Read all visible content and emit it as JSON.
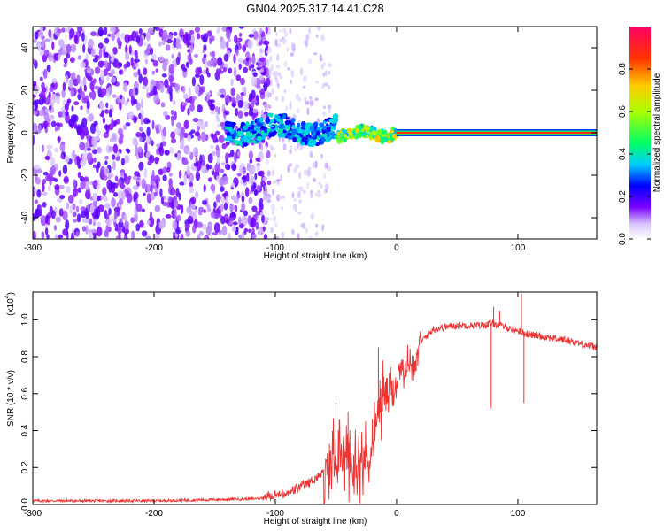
{
  "title": "GN04.2025.317.14.41.C28",
  "chart_data": [
    {
      "type": "heatmap",
      "xlabel": "Height of straight line (km)",
      "ylabel": "Frequency (Hz)",
      "xlim": [
        -300,
        165
      ],
      "ylim": [
        -50,
        50
      ],
      "x_ticks": [
        -300,
        -200,
        -100,
        0,
        100
      ],
      "x_tick_labels": [
        "-300",
        "-200",
        "-100",
        "0",
        "100"
      ],
      "y_ticks": [
        -40,
        -20,
        0,
        20,
        40
      ],
      "y_tick_labels": [
        "-40",
        "-20",
        "0",
        "20",
        "40"
      ],
      "colorbar": {
        "label": "Normalized spectral amplitude",
        "range": [
          0,
          1
        ],
        "ticks": [
          0.0,
          0.2,
          0.4,
          0.6,
          0.8
        ],
        "tick_labels": [
          "0.0",
          "0.2",
          "0.4",
          "0.6",
          "0.8"
        ],
        "colormap": [
          "#ffffff",
          "#6a00ff",
          "#0000ff",
          "#00ffff",
          "#00ff00",
          "#ffff00",
          "#ff0000",
          "#ff1493"
        ]
      },
      "regions": [
        {
          "x_from": -300,
          "x_to": -110,
          "description_level": "noise",
          "amplitude": 0.1
        },
        {
          "x_from": -140,
          "x_to": -50,
          "center_freq": 2,
          "amplitude": 0.35
        },
        {
          "x_from": -50,
          "x_to": 0,
          "center_freq": 0,
          "amplitude": 0.7
        },
        {
          "x_from": 0,
          "x_to": 165,
          "center_freq": 0,
          "amplitude": 0.95
        }
      ]
    },
    {
      "type": "line",
      "xlabel": "Height of straight line (km)",
      "ylabel": "SNR (10 * v/v)",
      "y_multiplier": "(x10",
      "y_multiplier_exp": "4",
      "xlim": [
        -300,
        165
      ],
      "ylim": [
        0,
        1.15
      ],
      "x_ticks": [
        -300,
        -200,
        -100,
        0,
        100
      ],
      "x_tick_labels": [
        "-300",
        "-200",
        "-100",
        "0",
        "100"
      ],
      "y_ticks": [
        0.0,
        0.2,
        0.4,
        0.6,
        0.8,
        1.0
      ],
      "y_tick_labels": [
        "0.0",
        "0.2",
        "0.4",
        "0.6",
        "0.8",
        "1.0"
      ],
      "series": [
        {
          "name": "SNR",
          "color": "#ee3333",
          "envelope_x": [
            -300,
            -200,
            -120,
            -100,
            -90,
            -80,
            -70,
            -60,
            -55,
            -50,
            -45,
            -40,
            -35,
            -30,
            -25,
            -20,
            -15,
            -10,
            -5,
            0,
            5,
            10,
            15,
            20,
            30,
            40,
            50,
            60,
            70,
            80,
            90,
            100,
            110,
            120,
            140,
            165
          ],
          "envelope_y": [
            0.02,
            0.02,
            0.03,
            0.04,
            0.05,
            0.08,
            0.12,
            0.16,
            0.22,
            0.28,
            0.25,
            0.24,
            0.22,
            0.22,
            0.25,
            0.3,
            0.5,
            0.6,
            0.62,
            0.65,
            0.72,
            0.76,
            0.8,
            0.88,
            0.95,
            0.96,
            0.97,
            0.97,
            0.97,
            0.98,
            0.96,
            0.94,
            0.92,
            0.91,
            0.89,
            0.85
          ],
          "spikes": [
            {
              "x": -50,
              "y": 0.55
            },
            {
              "x": -40,
              "y": 0.5
            },
            {
              "x": -15,
              "y": 0.85
            },
            {
              "x": 78,
              "y": 0.52
            },
            {
              "x": 80,
              "y": 1.07
            },
            {
              "x": 85,
              "y": 1.05
            },
            {
              "x": 103,
              "y": 1.14
            },
            {
              "x": 105,
              "y": 0.55
            }
          ]
        }
      ]
    }
  ]
}
